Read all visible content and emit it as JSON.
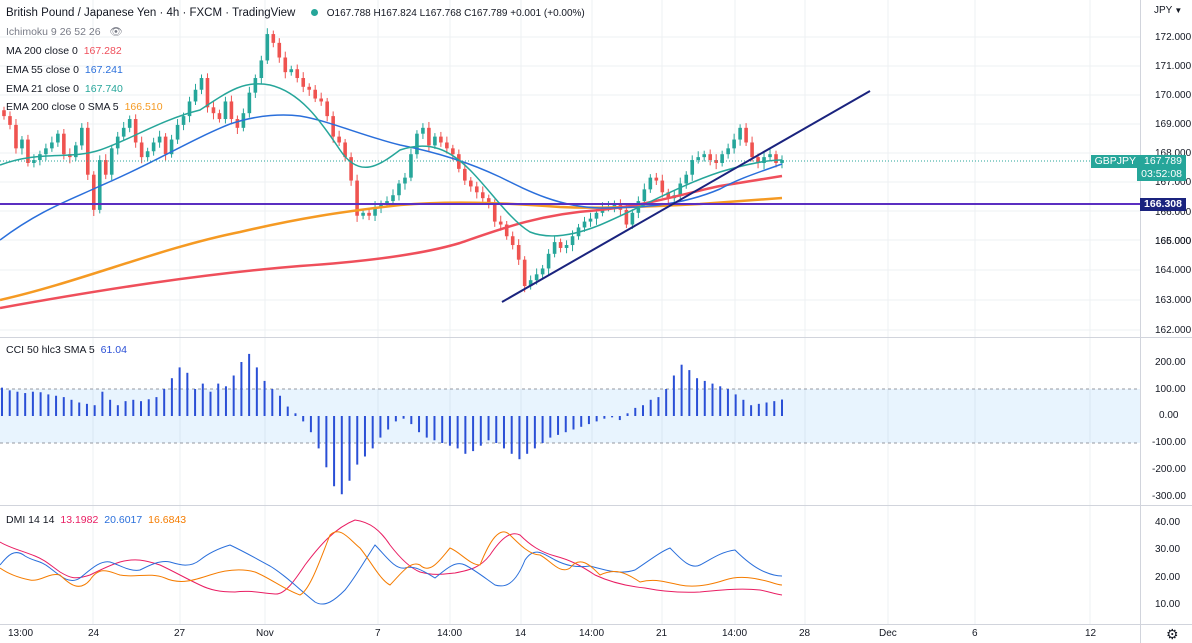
{
  "header": {
    "title": "British Pound / Japanese Yen · 4h · FXCM · TradingView",
    "ohlc": "O167.788 H167.824 L167.768 C167.789 +0.001 (+0.00%)",
    "currency": "JPY"
  },
  "indicators": {
    "ichimoku": "Ichimoku 9 26 52 26",
    "ma200": {
      "label": "MA 200 close 0",
      "value": "167.282",
      "color": "#ef4f5b"
    },
    "ema55": {
      "label": "EMA 55 close 0",
      "value": "167.241",
      "color": "#2a6fdb"
    },
    "ema21": {
      "label": "EMA 21 close 0",
      "value": "167.740",
      "color": "#26a69a"
    },
    "ema200": {
      "label": "EMA 200 close 0 SMA 5",
      "value": "166.510",
      "color": "#f59a23"
    }
  },
  "cci": {
    "label": "CCI 50 hlc3 SMA 5",
    "value": "61.04",
    "color": "#2a4fd6"
  },
  "dmi": {
    "label": "DMI 14 14",
    "v1": "13.1982",
    "v1color": "#e91e63",
    "v2": "20.6017",
    "v2color": "#2a6fdb",
    "v3": "16.6843",
    "v3color": "#f57c00"
  },
  "symbol_tag": "GBPJPY",
  "last_price": "167.789",
  "countdown": "03:52:08",
  "hline_price": "166.308",
  "price_axis": [
    "172.000",
    "171.000",
    "170.000",
    "169.000",
    "168.000",
    "167.000",
    "166.000",
    "165.000",
    "164.000",
    "163.000",
    "162.000"
  ],
  "cci_axis": [
    "200.00",
    "100.00",
    "0.00",
    "-100.00",
    "-200.00",
    "-300.00"
  ],
  "dmi_axis": [
    "40.00",
    "30.00",
    "20.00",
    "10.00"
  ],
  "time_axis": [
    "13:00",
    "24",
    "27",
    "Nov",
    "7",
    "14:00",
    "14",
    "14:00",
    "21",
    "14:00",
    "28",
    "Dec",
    "6",
    "12"
  ],
  "chart_data": {
    "type": "candlestick",
    "instrument": "GBPJPY",
    "timeframe": "4h",
    "price_range": [
      161.7,
      172.7
    ],
    "horizontal_line": 166.308,
    "trendline": {
      "from": 163.0,
      "to": 170.1,
      "color": "#1a237e"
    },
    "up_color": "#26a69a",
    "down_color": "#ef5350",
    "closes": [
      169.3,
      169.0,
      168.2,
      168.5,
      167.7,
      167.8,
      168.0,
      168.2,
      168.4,
      168.7,
      168.0,
      167.9,
      168.3,
      168.9,
      167.3,
      166.1,
      167.8,
      167.3,
      168.2,
      168.6,
      168.9,
      169.2,
      168.4,
      167.9,
      168.1,
      168.4,
      168.6,
      168.0,
      168.5,
      169.0,
      169.3,
      169.8,
      170.2,
      170.6,
      169.6,
      169.4,
      169.2,
      169.8,
      169.2,
      168.9,
      169.4,
      170.1,
      170.6,
      171.2,
      172.1,
      171.8,
      171.3,
      170.8,
      170.9,
      170.6,
      170.3,
      170.2,
      169.9,
      169.8,
      169.3,
      168.6,
      168.4,
      167.9,
      167.1,
      165.9,
      166.0,
      165.9,
      166.2,
      166.3,
      166.4,
      166.6,
      167.0,
      167.2,
      168.0,
      168.7,
      168.9,
      168.3,
      168.6,
      168.4,
      168.2,
      168.0,
      167.5,
      167.1,
      166.9,
      166.7,
      166.5,
      166.3,
      165.7,
      165.6,
      165.2,
      164.9,
      164.4,
      163.5,
      163.7,
      163.9,
      164.1,
      164.6,
      165.0,
      164.8,
      164.9,
      165.2,
      165.5,
      165.7,
      165.8,
      166.0,
      166.2,
      166.2,
      166.3,
      166.1,
      165.6,
      166.0,
      166.4,
      166.8,
      167.2,
      167.1,
      166.7,
      166.5,
      166.6,
      167.0,
      167.3,
      167.8,
      167.9,
      168.0,
      167.8,
      167.7,
      168.0,
      168.2,
      168.5,
      168.9,
      168.4,
      167.9,
      167.7,
      167.9,
      168.0,
      167.7,
      167.8
    ],
    "series": [
      {
        "name": "MA 200 close 0",
        "values": [
          162.8,
          163.3,
          163.7,
          164.1,
          164.5,
          165.0,
          165.5,
          166.2,
          167.0,
          167.3
        ]
      },
      {
        "name": "EMA 55 close 0",
        "values": [
          165.0,
          167.0,
          168.9,
          169.4,
          168.6,
          167.3,
          166.7,
          166.3,
          166.5,
          167.2
        ]
      },
      {
        "name": "EMA 21 close 0",
        "values": [
          167.6,
          168.2,
          169.5,
          170.6,
          169.2,
          166.8,
          166.2,
          165.8,
          166.6,
          167.7
        ]
      },
      {
        "name": "EMA 200 close 0 SMA 5",
        "values": [
          163.1,
          164.0,
          164.8,
          165.7,
          166.2,
          166.4,
          166.3,
          166.2,
          166.3,
          166.5
        ]
      }
    ],
    "cci_range": [
      -320,
      240
    ],
    "cci_values": [
      105,
      95,
      90,
      85,
      90,
      88,
      80,
      75,
      70,
      60,
      50,
      45,
      40,
      90,
      60,
      40,
      55,
      60,
      55,
      62,
      70,
      100,
      140,
      180,
      160,
      100,
      120,
      90,
      120,
      110,
      150,
      200,
      230,
      180,
      130,
      100,
      75,
      35,
      10,
      -20,
      -60,
      -120,
      -190,
      -260,
      -290,
      -240,
      -180,
      -150,
      -120,
      -80,
      -50,
      -20,
      -10,
      -30,
      -60,
      -80,
      -90,
      -100,
      -110,
      -120,
      -140,
      -130,
      -110,
      -90,
      -100,
      -120,
      -140,
      -160,
      -140,
      -120,
      -100,
      -80,
      -70,
      -60,
      -50,
      -40,
      -30,
      -20,
      -10,
      -5,
      -15,
      10,
      30,
      40,
      60,
      70,
      100,
      150,
      190,
      170,
      140,
      130,
      120,
      110,
      100,
      80,
      60,
      40,
      45,
      50,
      55,
      61
    ]
  }
}
